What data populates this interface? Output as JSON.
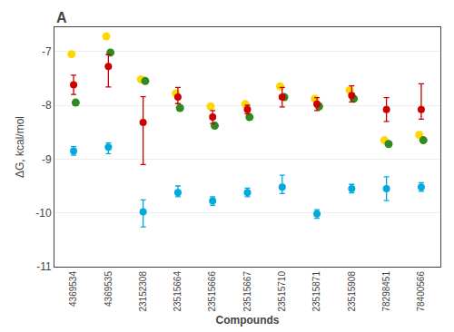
{
  "chart_data": {
    "type": "scatter",
    "categories": [
      "4369534",
      "4369535",
      "23152308",
      "23515664",
      "23515666",
      "23515667",
      "23515710",
      "23515871",
      "23515908",
      "78298451",
      "78400566"
    ],
    "xlabel": "Compounds",
    "ylabel": "ΔG, kcal/mol",
    "ylim": [
      -11.0,
      -6.55
    ],
    "yticks": [
      -11,
      -10,
      -9,
      -8,
      -7
    ],
    "grid": true,
    "annotations": [
      {
        "text": "A"
      }
    ],
    "series": [
      {
        "color": "#FFD700",
        "marker": "circle",
        "values": [
          -7.05,
          -6.72,
          -7.52,
          -7.78,
          -8.02,
          -7.98,
          -7.65,
          -7.88,
          -7.72,
          -8.65,
          -8.55
        ]
      },
      {
        "color": "#2E8B22",
        "marker": "circle",
        "values": [
          -7.95,
          -7.02,
          -7.55,
          -8.05,
          -8.38,
          -8.22,
          -7.85,
          -8.02,
          -7.88,
          -8.72,
          -8.65
        ]
      },
      {
        "color": "#CC0000",
        "marker": "circle",
        "values": [
          -7.62,
          -7.28,
          -8.32,
          -7.85,
          -8.22,
          -8.08,
          -7.85,
          -7.98,
          -7.82,
          -8.08,
          -8.08
        ],
        "error_up": [
          0.18,
          0.22,
          0.48,
          0.18,
          0.12,
          0.08,
          0.18,
          0.12,
          0.18,
          0.22,
          0.48
        ],
        "error_down": [
          0.18,
          0.38,
          0.78,
          0.12,
          0.12,
          0.08,
          0.18,
          0.12,
          0.12,
          0.22,
          0.18
        ]
      },
      {
        "color": "#00AADD",
        "marker": "circle",
        "values": [
          -8.85,
          -8.78,
          -9.98,
          -9.62,
          -9.78,
          -9.62,
          -9.52,
          -10.02,
          -9.55,
          -9.55,
          -9.52
        ],
        "error_up": [
          0.08,
          0.08,
          0.22,
          0.12,
          0.08,
          0.08,
          0.22,
          0.08,
          0.08,
          0.22,
          0.08
        ],
        "error_down": [
          0.08,
          0.12,
          0.28,
          0.08,
          0.08,
          0.08,
          0.12,
          0.08,
          0.08,
          0.22,
          0.08
        ]
      }
    ]
  }
}
